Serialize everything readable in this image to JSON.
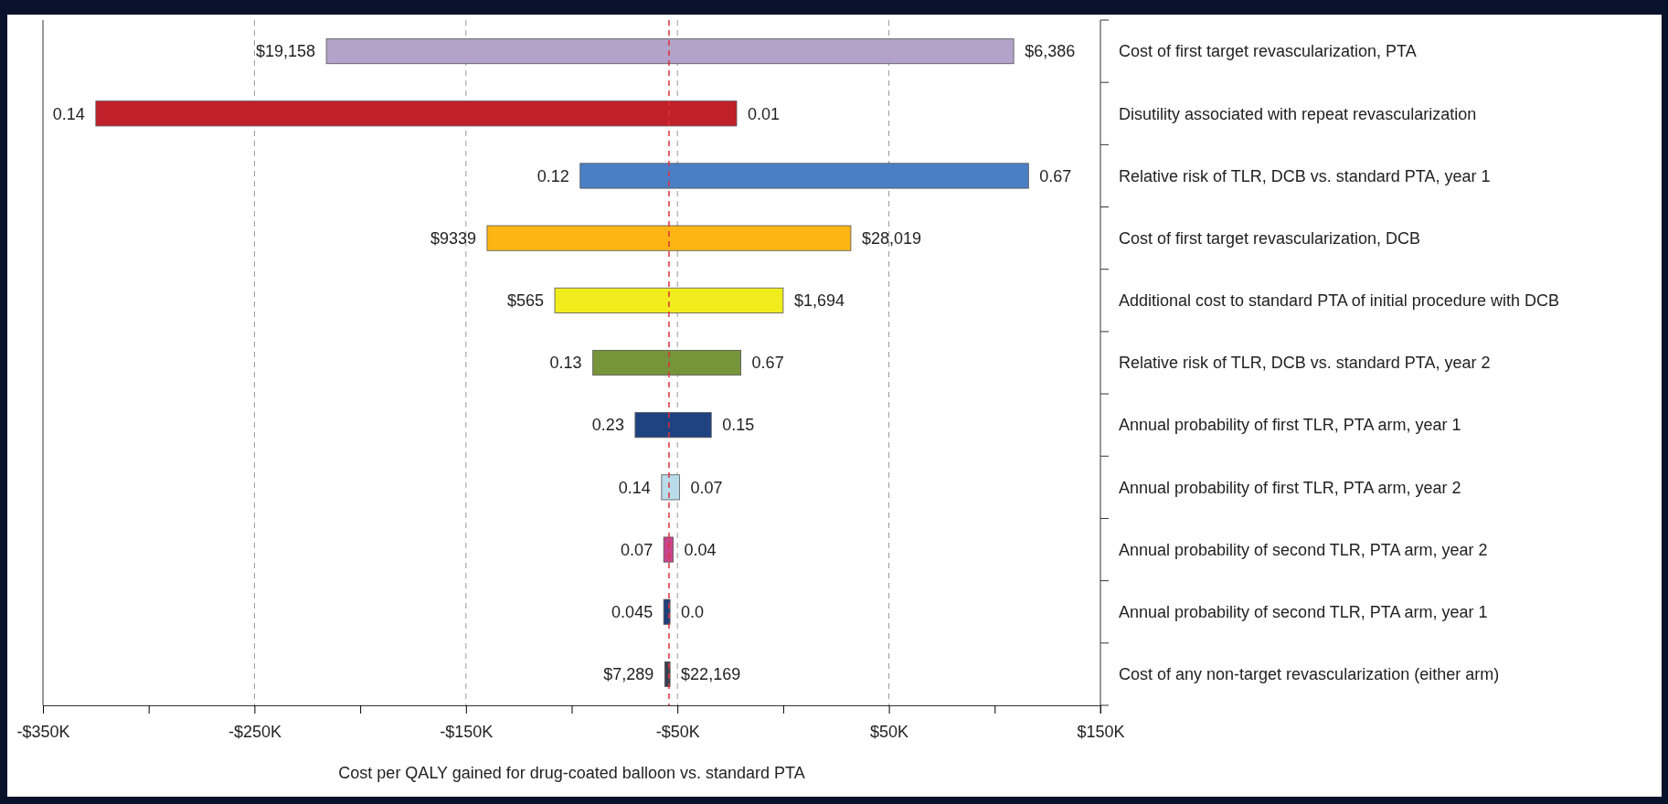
{
  "chart_data": {
    "type": "bar",
    "orientation": "horizontal",
    "xlabel": "Cost per QALY gained for drug-coated balloon vs. standard PTA",
    "categories": [
      "Cost of first target revascularization, PTA",
      "Disutility associated with repeat revascularization",
      "Relative risk of TLR, DCB vs. standard PTA, year 1",
      "Cost of first target revascularization, DCB",
      "Additional cost to standard PTA of initial procedure with DCB",
      "Relative risk of TLR, DCB vs. standard PTA, year 2",
      "Annual probability of first TLR, PTA arm, year 1",
      "Annual probability of first TLR, PTA arm, year 2",
      "Annual probability of second TLR, PTA arm, year 2",
      "Annual probability of second TLR, PTA arm, year 1",
      "Cost of any non-target revascularization (either arm)"
    ],
    "base": [
      -216,
      -325,
      -96,
      -140,
      -108,
      -90,
      -70,
      -57.5,
      -56.5,
      -56.5,
      -56
    ],
    "values": [
      325,
      303,
      212,
      172,
      108,
      70,
      36,
      8.5,
      4.5,
      3,
      2.5
    ],
    "colors": [
      "#b3a2c9",
      "#c0202a",
      "#4a7fc6",
      "#fdb515",
      "#f0ec1e",
      "#76943a",
      "#1f4280",
      "#b9dcea",
      "#c8448a",
      "#1f3f7a",
      "#3a4050"
    ],
    "xlim": [
      -350,
      150
    ],
    "xticks": [
      {
        "value": -350,
        "label": "-$350K"
      },
      {
        "value": -300,
        "label": null
      },
      {
        "value": -250,
        "label": "-$250K"
      },
      {
        "value": -200,
        "label": null
      },
      {
        "value": -150,
        "label": "-$150K"
      },
      {
        "value": -100,
        "label": null
      },
      {
        "value": -50,
        "label": "-$50K"
      },
      {
        "value": 0,
        "label": null
      },
      {
        "value": 50,
        "label": "$50K"
      },
      {
        "value": 100,
        "label": null
      },
      {
        "value": 150,
        "label": "$150K"
      }
    ],
    "grid": "x",
    "ref_lines": [
      {
        "axis": "x",
        "value": -54,
        "color": "#e0303a",
        "line_style": "dashed"
      }
    ],
    "annotations": [
      {
        "text": "$19,158",
        "x": -216,
        "y": "Cost of first target revascularization, PTA"
      },
      {
        "text": "$6,386",
        "x": 109,
        "y": "Cost of first target revascularization, PTA"
      },
      {
        "text": "0.14",
        "x": -325,
        "y": "Disutility associated with repeat revascularization"
      },
      {
        "text": "0.01",
        "x": -22,
        "y": "Disutility associated with repeat revascularization"
      },
      {
        "text": "0.12",
        "x": -96,
        "y": "Relative risk of TLR, DCB vs. standard PTA, year 1"
      },
      {
        "text": "0.67",
        "x": 116,
        "y": "Relative risk of TLR, DCB vs. standard PTA, year 1"
      },
      {
        "text": "$9339",
        "x": -140,
        "y": "Cost of first target revascularization, DCB"
      },
      {
        "text": "$28,019",
        "x": 32,
        "y": "Cost of first target revascularization, DCB"
      },
      {
        "text": "$565",
        "x": -108,
        "y": "Additional cost to standard PTA of initial procedure with DCB"
      },
      {
        "text": "$1,694",
        "x": 0,
        "y": "Additional cost to standard PTA of initial procedure with DCB"
      },
      {
        "text": "0.13",
        "x": -90,
        "y": "Relative risk of TLR, DCB vs. standard PTA, year 2"
      },
      {
        "text": "0.67",
        "x": -20,
        "y": "Relative risk of TLR, DCB vs. standard PTA, year 2"
      },
      {
        "text": "0.23",
        "x": -70,
        "y": "Annual probability of first TLR, PTA arm, year 1"
      },
      {
        "text": "0.15",
        "x": -34,
        "y": "Annual probability of first TLR, PTA arm, year 1"
      },
      {
        "text": "0.14",
        "x": -57.5,
        "y": "Annual probability of first TLR, PTA arm, year 2"
      },
      {
        "text": "0.07",
        "x": -49,
        "y": "Annual probability of first TLR, PTA arm, year 2"
      },
      {
        "text": "0.07",
        "x": -56.5,
        "y": "Annual probability of second TLR, PTA arm, year 2"
      },
      {
        "text": "0.04",
        "x": -52,
        "y": "Annual probability of second TLR, PTA arm, year 2"
      },
      {
        "text": "0.045",
        "x": -56.5,
        "y": "Annual probability of second TLR, PTA arm, year 1"
      },
      {
        "text": "0.0",
        "x": -53.5,
        "y": "Annual probability of second TLR, PTA arm, year 1"
      },
      {
        "text": "$7,289",
        "x": -56,
        "y": "Cost of any non-target revascularization (either arm)"
      },
      {
        "text": "$22,169",
        "x": -53.5,
        "y": "Cost of any non-target revascularization (either arm)"
      }
    ]
  }
}
